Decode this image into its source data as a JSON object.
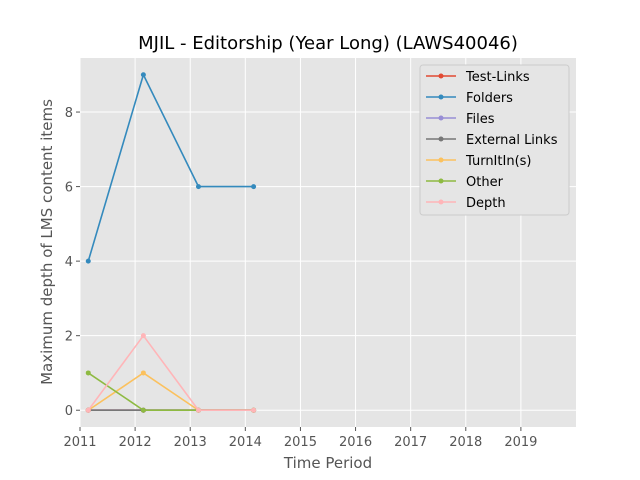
{
  "chart_data": {
    "type": "line",
    "title": "MJIL - Editorship (Year Long) (LAWS40046)",
    "xlabel": "Time Period",
    "ylabel": "Maximum depth of LMS content items",
    "xlim": [
      2011,
      2020
    ],
    "ylim": [
      -0.45,
      9.45
    ],
    "x_ticks": [
      "2011",
      "2012",
      "2013",
      "2014",
      "2015",
      "2016",
      "2017",
      "2018",
      "2019"
    ],
    "y_ticks": [
      "0",
      "2",
      "4",
      "6",
      "8"
    ],
    "x": [
      2011.15,
      2012.15,
      2013.15,
      2014.15
    ],
    "grid": true,
    "legend_position": "top-right",
    "series": [
      {
        "name": "Test-Links",
        "color": "#E24A33",
        "values": [
          0,
          0,
          0,
          0
        ]
      },
      {
        "name": "Folders",
        "color": "#348ABD",
        "values": [
          4,
          9,
          6,
          6
        ]
      },
      {
        "name": "Files",
        "color": "#988ED5",
        "values": [
          0,
          0,
          0,
          0
        ]
      },
      {
        "name": "External Links",
        "color": "#777777",
        "values": [
          0,
          0,
          0,
          0
        ]
      },
      {
        "name": "TurnItIn(s)",
        "color": "#FBC15E",
        "values": [
          0,
          1,
          0,
          0
        ]
      },
      {
        "name": "Other",
        "color": "#8EBA42",
        "values": [
          1,
          0,
          0,
          0
        ]
      },
      {
        "name": "Depth",
        "color": "#FFB5B8",
        "values": [
          0,
          2,
          0,
          0
        ]
      }
    ]
  }
}
